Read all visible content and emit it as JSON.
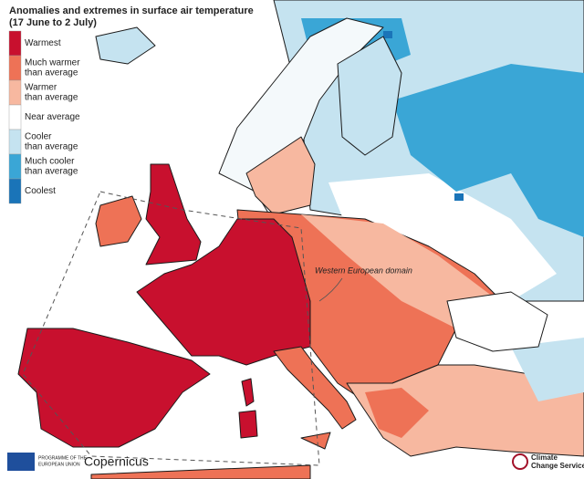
{
  "title": "Anomalies and extremes in surface air temperature",
  "subtitle": "(17 June to 2 July)",
  "legend": [
    {
      "lines": [
        "Warmest"
      ],
      "color": "#c8102e"
    },
    {
      "lines": [
        "Much warmer",
        "than average"
      ],
      "color": "#ee7256"
    },
    {
      "lines": [
        "Warmer",
        "than average"
      ],
      "color": "#f7b8a0"
    },
    {
      "lines": [
        "Near average"
      ],
      "color": "#ffffff"
    },
    {
      "lines": [
        "Cooler",
        "than average"
      ],
      "color": "#c5e3f0"
    },
    {
      "lines": [
        "Much cooler",
        "than average"
      ],
      "color": "#3aa6d6"
    },
    {
      "lines": [
        "Coolest"
      ],
      "color": "#1a74b8"
    }
  ],
  "annotation": "Western European domain",
  "footer": {
    "programme": [
      "PROGRAMME OF THE",
      "EUROPEAN UNION"
    ],
    "copernicus": "Copernicus",
    "service": [
      "Climate",
      "Change Service"
    ]
  }
}
